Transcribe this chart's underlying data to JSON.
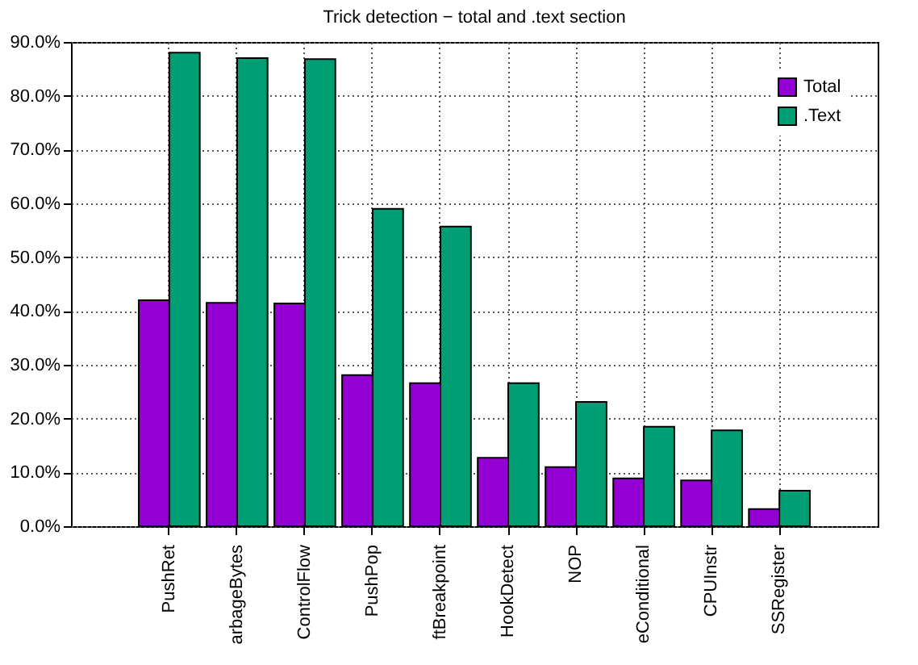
{
  "chart_data": {
    "type": "bar",
    "title": "Trick detection − total and .text section",
    "categories": [
      "PushRet",
      "arbageBytes",
      "ControlFlow",
      "PushPop",
      "ftBreakpoint",
      "HookDetect",
      "NOP",
      "eConditional",
      "CPUInstr",
      "SSRegister"
    ],
    "series": [
      {
        "name": "Total",
        "color": "#9400d3",
        "values": [
          42.0,
          41.5,
          41.4,
          28.1,
          26.6,
          12.7,
          11.0,
          8.9,
          8.5,
          3.2
        ]
      },
      {
        "name": ".Text",
        "color": "#009e73",
        "values": [
          88.0,
          87.0,
          86.8,
          59.0,
          55.7,
          26.6,
          23.1,
          18.5,
          17.8,
          6.6
        ]
      }
    ],
    "ylim": [
      0,
      90
    ],
    "yticks": [
      {
        "value": 0,
        "label": "0.0%"
      },
      {
        "value": 10,
        "label": "10.0%"
      },
      {
        "value": 20,
        "label": "20.0%"
      },
      {
        "value": 30,
        "label": "30.0%"
      },
      {
        "value": 40,
        "label": "40.0%"
      },
      {
        "value": 50,
        "label": "50.0%"
      },
      {
        "value": 60,
        "label": "60.0%"
      },
      {
        "value": 70,
        "label": "70.0%"
      },
      {
        "value": 80,
        "label": "80.0%"
      },
      {
        "value": 90,
        "label": "90.0%"
      }
    ],
    "grid": true,
    "legend": "top right"
  }
}
